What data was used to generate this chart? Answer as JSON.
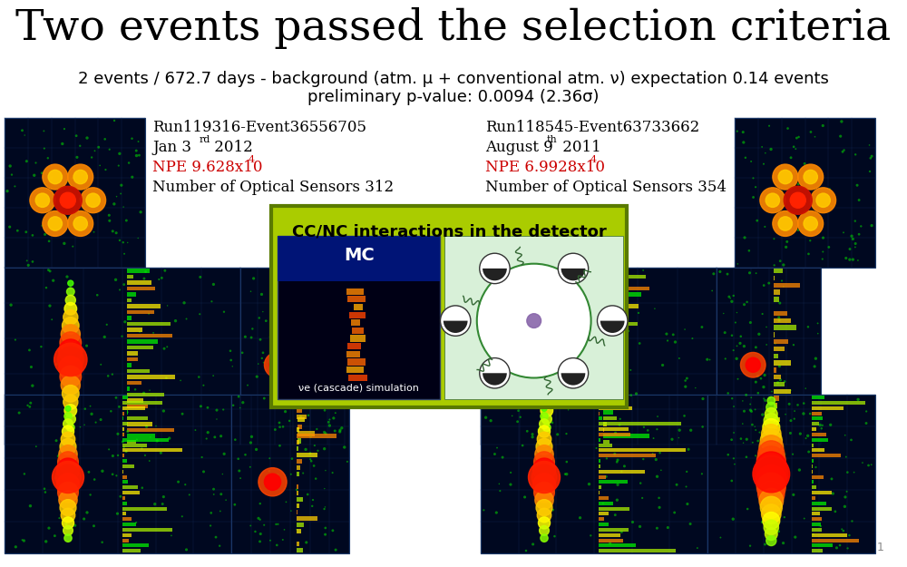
{
  "title": "Two events passed the selection criteria",
  "subtitle1": "2 events / 672.7 days - background (atm. μ + conventional atm. ν) expectation 0.14 events",
  "subtitle2": "preliminary p-value: 0.0094 (2.36σ)",
  "event1_run": "Run119316-Event36556705",
  "event1_date": "Jan 3",
  "event1_date_sup": "rd",
  "event1_date2": " 2012",
  "event1_npe": "NPE 9.628x10",
  "event1_npe_sup": "4",
  "event1_sensors": "Number of Optical Sensors 312",
  "event2_run": "Run118545-Event63733662",
  "event2_date": "August 9",
  "event2_date_sup": "th",
  "event2_date2": " 2011",
  "event2_npe": "NPE 6.9928x10",
  "event2_npe_sup": "4",
  "event2_sensors": "Number of Optical Sensors 354",
  "cc_nc_title": "CC/NC interactions in the detector",
  "mc_label": "MC",
  "cascade_label": "νe (cascade) simulation",
  "slide_number": "1",
  "title_fontsize": 34,
  "subtitle_fontsize": 13,
  "event_label_fontsize": 12,
  "npe_color": "#cc0000",
  "background_color": "#ffffff",
  "cc_nc_bg_color": "#aacc00",
  "title_color": "#000000",
  "text_color": "#000000"
}
